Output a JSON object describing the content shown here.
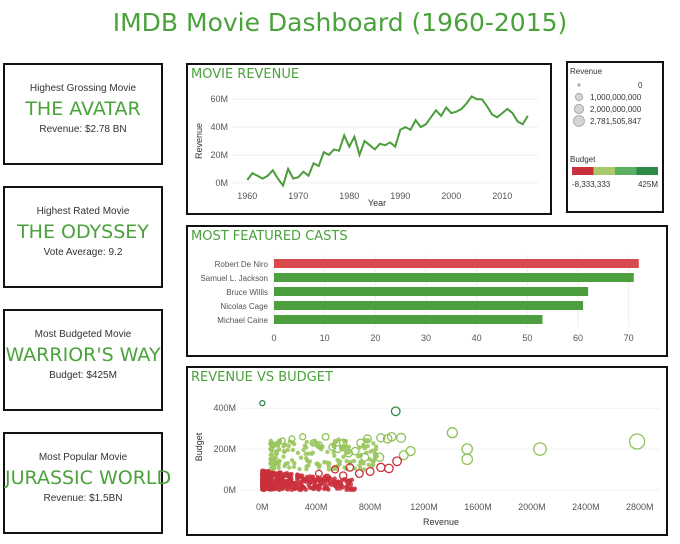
{
  "page_title": "IMDB Movie Dashboard (1960-2015)",
  "kpi_cards": [
    {
      "label": "Highest Grossing Movie",
      "value": "THE AVATAR",
      "detail": "Revenue: $2.78 BN"
    },
    {
      "label": "Highest Rated Movie",
      "value": "THE ODYSSEY",
      "detail": "Vote Average: 9.2"
    },
    {
      "label": "Most Budgeted Movie",
      "value": "WARRIOR'S WAY",
      "detail": "Budget: $425M"
    },
    {
      "label": "Most Popular Movie",
      "value": "JURASSIC WORLD",
      "detail": "Revenue: $1.5BN"
    }
  ],
  "legend": {
    "revenue_title": "Revenue",
    "revenue_items": [
      "0",
      "1,000,000,000",
      "2,000,000,000",
      "2,781,505,847"
    ],
    "budget_title": "Budget",
    "budget_min": "-8,333,333",
    "budget_max": "425M",
    "budget_colors": [
      "#c9303c",
      "#a9c96b",
      "#5cae63",
      "#2e8b46"
    ]
  },
  "colors": {
    "accent": "#4aa23b",
    "line": "#4a9d3a",
    "red": "#d94a4e",
    "green_bar": "#4c9e3e"
  },
  "chart_data": [
    {
      "type": "line",
      "title": "MOVIE REVENUE",
      "xlabel": "Year",
      "ylabel": "Revenue",
      "x_ticks": [
        "1960",
        "1970",
        "1980",
        "1990",
        "2000",
        "2010"
      ],
      "y_ticks": [
        "0M",
        "20M",
        "40M",
        "60M"
      ],
      "xlim": [
        1957,
        2017
      ],
      "ylim": [
        -3,
        63
      ],
      "x": [
        1960,
        1961,
        1962,
        1963,
        1964,
        1965,
        1966,
        1967,
        1968,
        1969,
        1970,
        1971,
        1972,
        1973,
        1974,
        1975,
        1976,
        1977,
        1978,
        1979,
        1980,
        1981,
        1982,
        1983,
        1984,
        1985,
        1986,
        1987,
        1988,
        1989,
        1990,
        1991,
        1992,
        1993,
        1994,
        1995,
        1996,
        1997,
        1998,
        1999,
        2000,
        2001,
        2002,
        2003,
        2004,
        2005,
        2006,
        2007,
        2008,
        2009,
        2010,
        2011,
        2012,
        2013,
        2014,
        2015
      ],
      "series": [
        {
          "values": [
            2,
            7,
            5,
            3,
            5,
            9,
            3,
            -2,
            10,
            3,
            4,
            8,
            5,
            14,
            12,
            22,
            20,
            24,
            23,
            34,
            26,
            33,
            20,
            30,
            27,
            24,
            28,
            27,
            29,
            26,
            38,
            40,
            38,
            45,
            40,
            42,
            47,
            52,
            48,
            54,
            50,
            51,
            53,
            57,
            62,
            60,
            60,
            55,
            49,
            47,
            50,
            53,
            50,
            44,
            42,
            48
          ]
        }
      ]
    },
    {
      "type": "bar",
      "title": "MOST FEATURED CASTS",
      "categories": [
        "Robert De Niro",
        "Samuel L. Jackson",
        "Bruce Willis",
        "Nicolas Cage",
        "Michael Caine"
      ],
      "values": [
        72,
        71,
        62,
        61,
        53
      ],
      "x_ticks": [
        "0",
        "10",
        "20",
        "30",
        "40",
        "50",
        "60",
        "70"
      ],
      "xlim": [
        0,
        75
      ]
    },
    {
      "type": "scatter",
      "title": "REVENUE VS BUDGET",
      "xlabel": "Revenue",
      "ylabel": "Budget",
      "x_ticks": [
        "0M",
        "400M",
        "800M",
        "1200M",
        "1600M",
        "2000M",
        "2400M",
        "2800M"
      ],
      "y_ticks": [
        "0M",
        "200M",
        "400M"
      ],
      "xlim": [
        -150,
        2950
      ],
      "ylim": [
        -30,
        450
      ],
      "points": [
        {
          "x": 2780,
          "y": 237
        },
        {
          "x": 2060,
          "y": 200
        },
        {
          "x": 1520,
          "y": 150
        },
        {
          "x": 1520,
          "y": 200
        },
        {
          "x": 1410,
          "y": 280
        },
        {
          "x": 1100,
          "y": 190
        },
        {
          "x": 1050,
          "y": 170
        },
        {
          "x": 1030,
          "y": 255
        },
        {
          "x": 990,
          "y": 385
        },
        {
          "x": 960,
          "y": 260
        },
        {
          "x": 930,
          "y": 250
        },
        {
          "x": 880,
          "y": 255
        },
        {
          "x": 870,
          "y": 160
        },
        {
          "x": 780,
          "y": 250
        },
        {
          "x": 760,
          "y": 160
        },
        {
          "x": 730,
          "y": 230
        },
        {
          "x": 690,
          "y": 190
        },
        {
          "x": 640,
          "y": 180
        },
        {
          "x": 600,
          "y": 230
        },
        {
          "x": 560,
          "y": 200
        },
        {
          "x": 520,
          "y": 210
        },
        {
          "x": 470,
          "y": 260
        },
        {
          "x": 420,
          "y": 220
        },
        {
          "x": 380,
          "y": 230
        },
        {
          "x": 300,
          "y": 260
        },
        {
          "x": 220,
          "y": 250
        },
        {
          "x": 150,
          "y": 240
        },
        {
          "x": 80,
          "y": 220
        },
        {
          "x": 1,
          "y": 425
        },
        {
          "x": 1000,
          "y": 140
        },
        {
          "x": 940,
          "y": 105
        },
        {
          "x": 880,
          "y": 110
        },
        {
          "x": 800,
          "y": 90
        },
        {
          "x": 720,
          "y": 80
        },
        {
          "x": 650,
          "y": 110
        },
        {
          "x": 600,
          "y": 70
        },
        {
          "x": 540,
          "y": 100
        },
        {
          "x": 480,
          "y": 60
        },
        {
          "x": 420,
          "y": 80
        }
      ]
    }
  ]
}
